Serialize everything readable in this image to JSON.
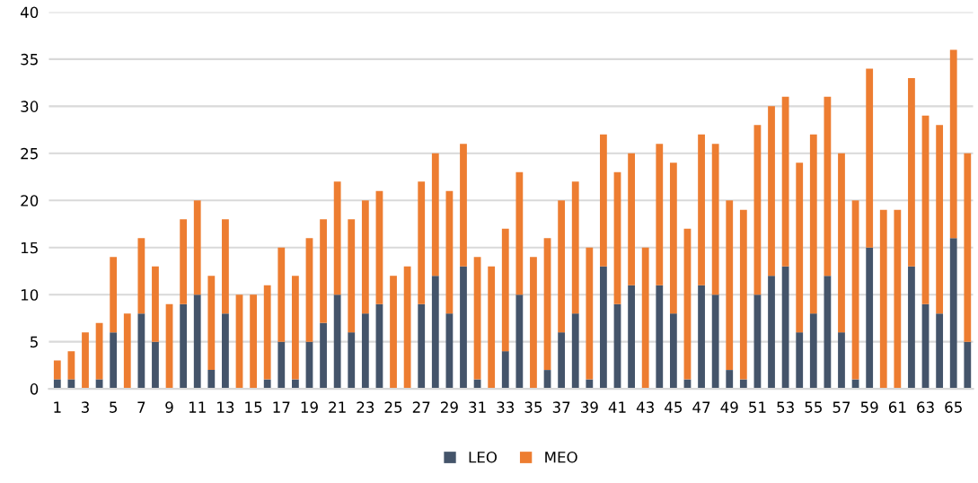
{
  "chart_data": {
    "type": "bar",
    "stacked": true,
    "categories": [
      "1",
      null,
      "3",
      null,
      "5",
      null,
      "7",
      null,
      "9",
      null,
      "11",
      null,
      "13",
      null,
      "15",
      null,
      "17",
      null,
      "19",
      null,
      "21",
      null,
      "23",
      null,
      "25",
      null,
      "27",
      null,
      "29",
      null,
      "31",
      null,
      "33",
      null,
      "35",
      null,
      "37",
      null,
      "39",
      null,
      "41",
      null,
      "43",
      null,
      "45",
      null,
      "47",
      null,
      "49",
      null,
      "51",
      null,
      "53",
      null,
      "55",
      null,
      "57",
      null,
      "59",
      null,
      "61",
      null,
      "63",
      null,
      "65",
      null
    ],
    "series": [
      {
        "name": "LEO",
        "color": "#44546a",
        "values": [
          1,
          1,
          0,
          1,
          6,
          0,
          8,
          5,
          0,
          9,
          10,
          2,
          8,
          0,
          0,
          1,
          5,
          1,
          5,
          7,
          10,
          6,
          8,
          9,
          0,
          0,
          9,
          12,
          8,
          13,
          1,
          0,
          4,
          10,
          0,
          2,
          6,
          8,
          1,
          13,
          9,
          11,
          0,
          11,
          8,
          1,
          11,
          10,
          2,
          1,
          10,
          12,
          13,
          6,
          8,
          12,
          6,
          1,
          15,
          0,
          0,
          13,
          9,
          8,
          16,
          5
        ]
      },
      {
        "name": "MEO",
        "color": "#ed7d31",
        "values": [
          2,
          3,
          6,
          6,
          8,
          8,
          8,
          8,
          9,
          9,
          10,
          10,
          10,
          10,
          10,
          10,
          10,
          11,
          11,
          11,
          12,
          12,
          12,
          12,
          12,
          13,
          13,
          13,
          13,
          13,
          13,
          13,
          13,
          13,
          14,
          14,
          14,
          14,
          14,
          14,
          14,
          14,
          15,
          15,
          16,
          16,
          16,
          16,
          18,
          18,
          18,
          18,
          18,
          18,
          19,
          19,
          19,
          19,
          19,
          19,
          19,
          20,
          20,
          20,
          20,
          20
        ]
      }
    ],
    "ylim": [
      0,
      40
    ],
    "yticks": [
      0,
      5,
      10,
      15,
      20,
      25,
      30,
      35,
      40
    ],
    "grid": "y",
    "legend": "bottom"
  }
}
